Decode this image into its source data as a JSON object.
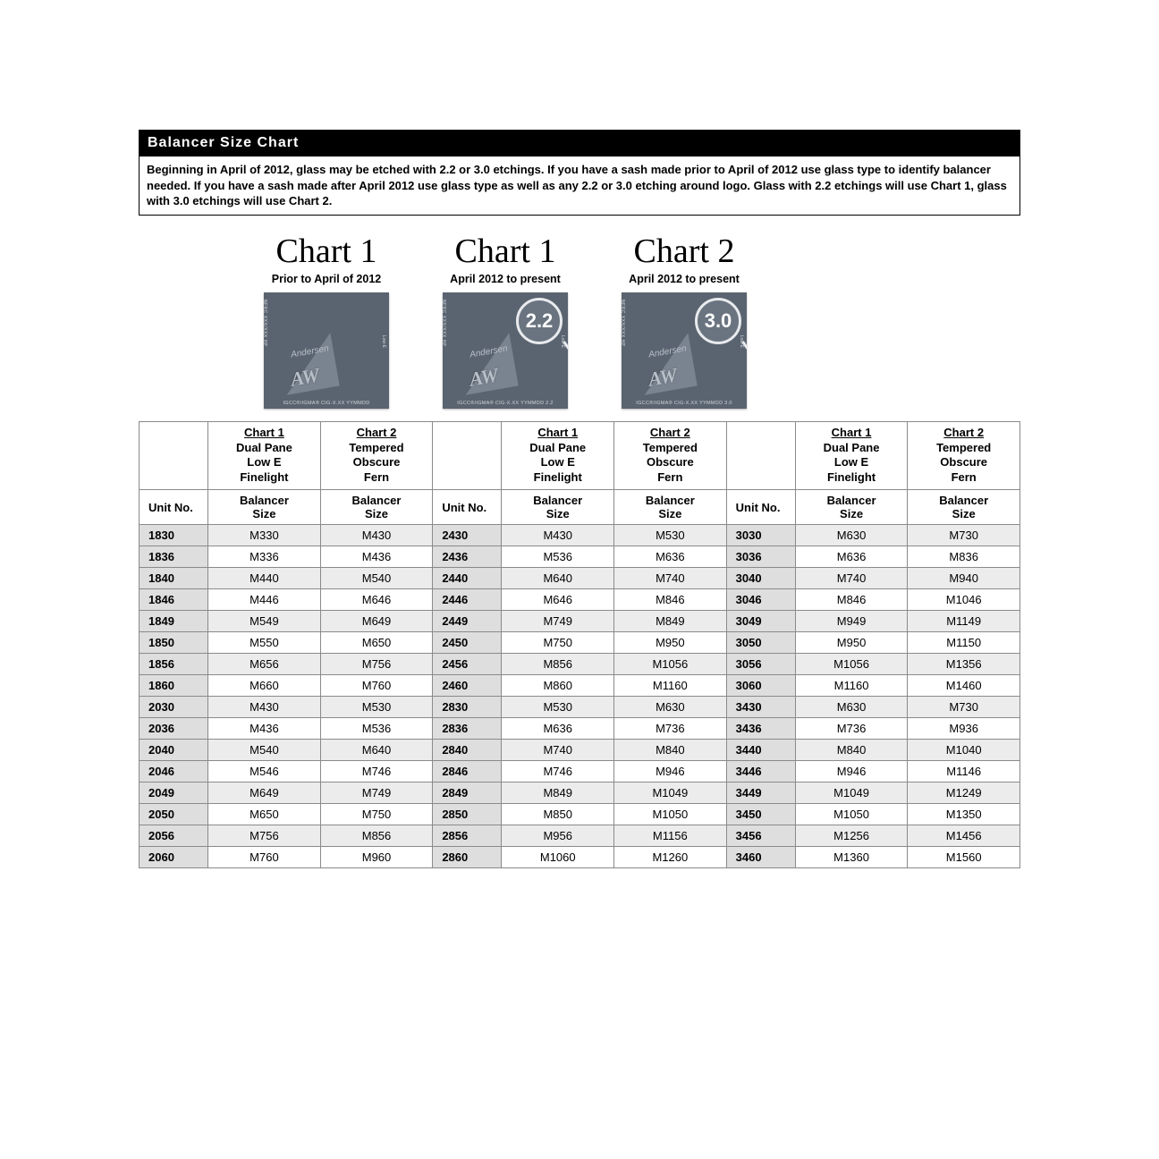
{
  "title": "Balancer Size Chart",
  "intro": "Beginning in April of 2012, glass may be etched with 2.2 or 3.0 etchings.  If you have a sash made prior to April of 2012 use glass type to identify balancer needed.  If you have a sash made after April 2012 use glass type as well as any 2.2 or 3.0 etching around logo. Glass with 2.2 etchings will use Chart 1, glass with 3.0 etchings will use Chart 2.",
  "etchings": [
    {
      "title": "Chart 1",
      "sub": "Prior to April of 2012",
      "loupe": "",
      "code": "IGCC®/IGMA® CIG-X.XX YYMMDD"
    },
    {
      "title": "Chart 1",
      "sub": "April 2012 to present",
      "loupe": "2.2",
      "code": "IGCC®/IGMA® CIG-X.XX YYMMDD 2.2"
    },
    {
      "title": "Chart 2",
      "sub": "April 2012 to present",
      "loupe": "3.0",
      "code": "IGCC®/IGMA® CIG-X.XX YYMMDD 3.0"
    }
  ],
  "nfrc_text": "NFRC XXX/XXX HP",
  "lowE_text": "Low-E",
  "andersen_text": "Andersen",
  "aw_text": "AW",
  "columns": {
    "chart1_label": "Chart 1",
    "chart1_lines": [
      "Dual Pane",
      "Low E",
      "Finelight"
    ],
    "chart2_label": "Chart 2",
    "chart2_lines": [
      "Tempered",
      "Obscure",
      "Fern"
    ],
    "unit_label": "Unit No.",
    "balancer_label": "Balancer",
    "size_label": "Size"
  },
  "table": {
    "type": "table",
    "background_color": "#ffffff",
    "row_alt_color": "#ececec",
    "unit_bg_color": "#dedede",
    "border_color": "#8a8a8a",
    "font_size": 13,
    "rows": [
      [
        "1830",
        "M330",
        "M430",
        "2430",
        "M430",
        "M530",
        "3030",
        "M630",
        "M730"
      ],
      [
        "1836",
        "M336",
        "M436",
        "2436",
        "M536",
        "M636",
        "3036",
        "M636",
        "M836"
      ],
      [
        "1840",
        "M440",
        "M540",
        "2440",
        "M640",
        "M740",
        "3040",
        "M740",
        "M940"
      ],
      [
        "1846",
        "M446",
        "M646",
        "2446",
        "M646",
        "M846",
        "3046",
        "M846",
        "M1046"
      ],
      [
        "1849",
        "M549",
        "M649",
        "2449",
        "M749",
        "M849",
        "3049",
        "M949",
        "M1149"
      ],
      [
        "1850",
        "M550",
        "M650",
        "2450",
        "M750",
        "M950",
        "3050",
        "M950",
        "M1150"
      ],
      [
        "1856",
        "M656",
        "M756",
        "2456",
        "M856",
        "M1056",
        "3056",
        "M1056",
        "M1356"
      ],
      [
        "1860",
        "M660",
        "M760",
        "2460",
        "M860",
        "M1160",
        "3060",
        "M1160",
        "M1460"
      ],
      [
        "2030",
        "M430",
        "M530",
        "2830",
        "M530",
        "M630",
        "3430",
        "M630",
        "M730"
      ],
      [
        "2036",
        "M436",
        "M536",
        "2836",
        "M636",
        "M736",
        "3436",
        "M736",
        "M936"
      ],
      [
        "2040",
        "M540",
        "M640",
        "2840",
        "M740",
        "M840",
        "3440",
        "M840",
        "M1040"
      ],
      [
        "2046",
        "M546",
        "M746",
        "2846",
        "M746",
        "M946",
        "3446",
        "M946",
        "M1146"
      ],
      [
        "2049",
        "M649",
        "M749",
        "2849",
        "M849",
        "M1049",
        "3449",
        "M1049",
        "M1249"
      ],
      [
        "2050",
        "M650",
        "M750",
        "2850",
        "M850",
        "M1050",
        "3450",
        "M1050",
        "M1350"
      ],
      [
        "2056",
        "M756",
        "M856",
        "2856",
        "M956",
        "M1156",
        "3456",
        "M1256",
        "M1456"
      ],
      [
        "2060",
        "M760",
        "M960",
        "2860",
        "M1060",
        "M1260",
        "3460",
        "M1360",
        "M1560"
      ]
    ]
  },
  "colors": {
    "title_bg": "#000000",
    "title_fg": "#ffffff",
    "logo_bg": "#5a6470",
    "logo_text": "#d0d4da",
    "loupe_border": "#e8eaed"
  }
}
